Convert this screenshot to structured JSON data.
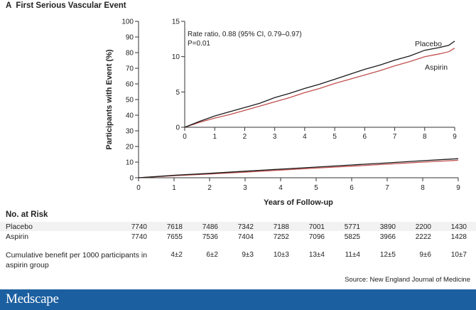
{
  "panel_letter": "A",
  "panel_title": "First Serious Vascular Event",
  "colors": {
    "placebo": "#1a1a1a",
    "aspirin": "#c0504d",
    "footer": "#1c5fa0"
  },
  "chart_data": [
    {
      "type": "line",
      "title": "",
      "xlabel": "Years of Follow-up",
      "ylabel": "Participants with Event (%)",
      "xlim": [
        0,
        9
      ],
      "ylim": [
        0,
        100
      ],
      "xticks": [
        "0",
        "1",
        "2",
        "3",
        "4",
        "5",
        "6",
        "7",
        "8",
        "9"
      ],
      "yticks": [
        "0",
        "10",
        "20",
        "30",
        "40",
        "50",
        "60",
        "70",
        "80",
        "90",
        "100"
      ],
      "series": [
        {
          "name": "Placebo",
          "x": [
            0,
            1,
            2,
            3,
            4,
            5,
            6,
            7,
            8,
            9
          ],
          "y": [
            0,
            1.6,
            2.8,
            4.2,
            5.5,
            6.8,
            8.2,
            9.5,
            10.9,
            12.2
          ]
        },
        {
          "name": "Aspirin",
          "x": [
            0,
            1,
            2,
            3,
            4,
            5,
            6,
            7,
            8,
            9
          ],
          "y": [
            0,
            1.3,
            2.4,
            3.6,
            4.9,
            6.2,
            7.4,
            8.7,
            10.0,
            11.2
          ]
        }
      ]
    },
    {
      "type": "line",
      "inset": true,
      "xlim": [
        0,
        9
      ],
      "ylim": [
        0,
        15
      ],
      "xticks": [
        "0",
        "1",
        "2",
        "3",
        "4",
        "5",
        "6",
        "7",
        "8",
        "9"
      ],
      "yticks": [
        "0",
        "5",
        "10",
        "15"
      ],
      "annotation_line1": "Rate ratio, 0.88 (95% CI, 0.79–0.97)",
      "annotation_line2": "P=0.01",
      "series": [
        {
          "name": "Placebo",
          "x": [
            0,
            0.5,
            1,
            1.5,
            2,
            2.5,
            3,
            3.5,
            4,
            4.5,
            5,
            5.5,
            6,
            6.5,
            7,
            7.5,
            8,
            8.5,
            8.8,
            9
          ],
          "y": [
            0,
            0.85,
            1.6,
            2.2,
            2.8,
            3.4,
            4.2,
            4.8,
            5.5,
            6.1,
            6.8,
            7.5,
            8.2,
            8.8,
            9.5,
            10.1,
            10.9,
            11.3,
            11.6,
            12.2
          ]
        },
        {
          "name": "Aspirin",
          "x": [
            0,
            0.5,
            1,
            1.5,
            2,
            2.5,
            3,
            3.5,
            4,
            4.5,
            5,
            5.5,
            6,
            6.5,
            7,
            7.5,
            8,
            8.5,
            8.8,
            9
          ],
          "y": [
            0,
            0.7,
            1.3,
            1.8,
            2.4,
            3.0,
            3.6,
            4.2,
            4.9,
            5.5,
            6.2,
            6.8,
            7.4,
            8.0,
            8.7,
            9.3,
            10.0,
            10.4,
            10.7,
            11.2
          ]
        }
      ]
    }
  ],
  "risk_table": {
    "title": "No. at Risk",
    "rows": [
      {
        "label": "Placebo",
        "values": [
          "7740",
          "7618",
          "7486",
          "7342",
          "7188",
          "7001",
          "5771",
          "3890",
          "2200",
          "1430"
        ]
      },
      {
        "label": "Aspirin",
        "values": [
          "7740",
          "7655",
          "7536",
          "7404",
          "7252",
          "7096",
          "5825",
          "3966",
          "2222",
          "1428"
        ]
      }
    ],
    "benefit_label": "Cumulative benefit per 1000 participants in aspirin group",
    "benefit_values": [
      "",
      "4±2",
      "6±2",
      "9±3",
      "10±3",
      "13±4",
      "11±4",
      "12±5",
      "9±6",
      "10±7"
    ]
  },
  "source": "Source: New England Journal of Medicine",
  "footer_brand": "Medscape"
}
